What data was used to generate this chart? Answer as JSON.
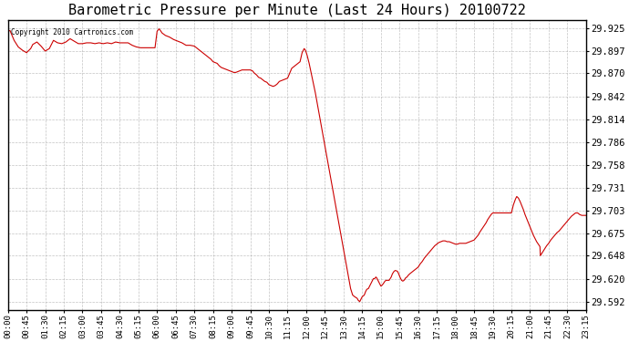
{
  "title": "Barometric Pressure per Minute (Last 24 Hours) 20100722",
  "copyright_text": "Copyright 2010 Cartronics.com",
  "line_color": "#cc0000",
  "background_color": "#ffffff",
  "grid_color": "#aaaaaa",
  "title_fontsize": 11,
  "ylabel_fontsize": 7.5,
  "xlabel_fontsize": 6.5,
  "yticks": [
    29.592,
    29.62,
    29.648,
    29.675,
    29.703,
    29.731,
    29.758,
    29.786,
    29.814,
    29.842,
    29.87,
    29.897,
    29.925
  ],
  "xtick_labels": [
    "00:00",
    "00:45",
    "01:30",
    "02:15",
    "03:00",
    "03:45",
    "04:30",
    "05:15",
    "06:00",
    "06:45",
    "07:30",
    "08:15",
    "09:00",
    "09:45",
    "10:30",
    "11:15",
    "12:00",
    "12:45",
    "13:30",
    "14:15",
    "15:00",
    "15:45",
    "16:30",
    "17:15",
    "18:00",
    "18:45",
    "19:30",
    "20:15",
    "21:00",
    "21:45",
    "22:30",
    "23:15"
  ],
  "ylim": [
    29.582,
    29.935
  ],
  "xlim": [
    0,
    1395
  ],
  "pressure_trace": [
    [
      0,
      29.921
    ],
    [
      5,
      29.922
    ],
    [
      15,
      29.91
    ],
    [
      25,
      29.902
    ],
    [
      35,
      29.898
    ],
    [
      45,
      29.895
    ],
    [
      55,
      29.9
    ],
    [
      60,
      29.905
    ],
    [
      70,
      29.908
    ],
    [
      80,
      29.903
    ],
    [
      90,
      29.897
    ],
    [
      100,
      29.9
    ],
    [
      110,
      29.91
    ],
    [
      120,
      29.907
    ],
    [
      130,
      29.906
    ],
    [
      140,
      29.908
    ],
    [
      150,
      29.912
    ],
    [
      160,
      29.909
    ],
    [
      170,
      29.906
    ],
    [
      180,
      29.906
    ],
    [
      190,
      29.907
    ],
    [
      200,
      29.907
    ],
    [
      210,
      29.906
    ],
    [
      220,
      29.907
    ],
    [
      230,
      29.906
    ],
    [
      240,
      29.907
    ],
    [
      250,
      29.906
    ],
    [
      260,
      29.908
    ],
    [
      270,
      29.907
    ],
    [
      280,
      29.907
    ],
    [
      290,
      29.907
    ],
    [
      300,
      29.904
    ],
    [
      310,
      29.902
    ],
    [
      320,
      29.901
    ],
    [
      330,
      29.901
    ],
    [
      340,
      29.901
    ],
    [
      350,
      29.901
    ],
    [
      355,
      29.901
    ],
    [
      360,
      29.921
    ],
    [
      365,
      29.924
    ],
    [
      368,
      29.922
    ],
    [
      372,
      29.919
    ],
    [
      380,
      29.916
    ],
    [
      390,
      29.914
    ],
    [
      400,
      29.911
    ],
    [
      410,
      29.909
    ],
    [
      420,
      29.907
    ],
    [
      430,
      29.904
    ],
    [
      440,
      29.904
    ],
    [
      450,
      29.903
    ],
    [
      455,
      29.901
    ],
    [
      460,
      29.899
    ],
    [
      465,
      29.897
    ],
    [
      470,
      29.895
    ],
    [
      475,
      29.893
    ],
    [
      480,
      29.891
    ],
    [
      485,
      29.889
    ],
    [
      490,
      29.887
    ],
    [
      495,
      29.884
    ],
    [
      505,
      29.882
    ],
    [
      510,
      29.879
    ],
    [
      515,
      29.877
    ],
    [
      520,
      29.876
    ],
    [
      525,
      29.875
    ],
    [
      530,
      29.874
    ],
    [
      535,
      29.873
    ],
    [
      540,
      29.872
    ],
    [
      545,
      29.871
    ],
    [
      550,
      29.871
    ],
    [
      555,
      29.872
    ],
    [
      560,
      29.873
    ],
    [
      565,
      29.874
    ],
    [
      570,
      29.874
    ],
    [
      575,
      29.874
    ],
    [
      580,
      29.874
    ],
    [
      585,
      29.874
    ],
    [
      590,
      29.873
    ],
    [
      595,
      29.87
    ],
    [
      600,
      29.868
    ],
    [
      605,
      29.865
    ],
    [
      610,
      29.864
    ],
    [
      615,
      29.862
    ],
    [
      620,
      29.86
    ],
    [
      625,
      29.859
    ],
    [
      630,
      29.856
    ],
    [
      635,
      29.855
    ],
    [
      640,
      29.854
    ],
    [
      645,
      29.855
    ],
    [
      650,
      29.857
    ],
    [
      655,
      29.86
    ],
    [
      660,
      29.861
    ],
    [
      665,
      29.862
    ],
    [
      670,
      29.863
    ],
    [
      675,
      29.864
    ],
    [
      680,
      29.87
    ],
    [
      685,
      29.876
    ],
    [
      690,
      29.878
    ],
    [
      695,
      29.88
    ],
    [
      700,
      29.882
    ],
    [
      705,
      29.884
    ],
    [
      710,
      29.895
    ],
    [
      715,
      29.9
    ],
    [
      718,
      29.898
    ],
    [
      722,
      29.892
    ],
    [
      727,
      29.882
    ],
    [
      732,
      29.87
    ],
    [
      737,
      29.858
    ],
    [
      742,
      29.846
    ],
    [
      747,
      29.832
    ],
    [
      752,
      29.818
    ],
    [
      757,
      29.804
    ],
    [
      762,
      29.79
    ],
    [
      767,
      29.776
    ],
    [
      772,
      29.762
    ],
    [
      777,
      29.748
    ],
    [
      782,
      29.734
    ],
    [
      787,
      29.72
    ],
    [
      792,
      29.706
    ],
    [
      797,
      29.692
    ],
    [
      802,
      29.678
    ],
    [
      807,
      29.664
    ],
    [
      812,
      29.65
    ],
    [
      817,
      29.636
    ],
    [
      822,
      29.622
    ],
    [
      827,
      29.608
    ],
    [
      832,
      29.6
    ],
    [
      837,
      29.598
    ],
    [
      840,
      29.597
    ],
    [
      843,
      29.596
    ],
    [
      845,
      29.594
    ],
    [
      847,
      29.593
    ],
    [
      849,
      29.592
    ],
    [
      851,
      29.594
    ],
    [
      855,
      29.598
    ],
    [
      860,
      29.6
    ],
    [
      863,
      29.604
    ],
    [
      866,
      29.607
    ],
    [
      870,
      29.608
    ],
    [
      875,
      29.613
    ],
    [
      878,
      29.616
    ],
    [
      882,
      29.62
    ],
    [
      885,
      29.62
    ],
    [
      888,
      29.622
    ],
    [
      890,
      29.621
    ],
    [
      893,
      29.618
    ],
    [
      896,
      29.615
    ],
    [
      900,
      29.611
    ],
    [
      903,
      29.612
    ],
    [
      906,
      29.614
    ],
    [
      910,
      29.617
    ],
    [
      913,
      29.618
    ],
    [
      916,
      29.618
    ],
    [
      920,
      29.618
    ],
    [
      925,
      29.622
    ],
    [
      928,
      29.626
    ],
    [
      932,
      29.629
    ],
    [
      935,
      29.63
    ],
    [
      940,
      29.629
    ],
    [
      943,
      29.626
    ],
    [
      946,
      29.622
    ],
    [
      950,
      29.618
    ],
    [
      953,
      29.617
    ],
    [
      956,
      29.618
    ],
    [
      960,
      29.621
    ],
    [
      963,
      29.622
    ],
    [
      966,
      29.624
    ],
    [
      970,
      29.626
    ],
    [
      975,
      29.628
    ],
    [
      980,
      29.63
    ],
    [
      985,
      29.632
    ],
    [
      990,
      29.634
    ],
    [
      995,
      29.638
    ],
    [
      1000,
      29.641
    ],
    [
      1005,
      29.645
    ],
    [
      1010,
      29.648
    ],
    [
      1015,
      29.651
    ],
    [
      1020,
      29.654
    ],
    [
      1025,
      29.657
    ],
    [
      1030,
      29.66
    ],
    [
      1035,
      29.662
    ],
    [
      1040,
      29.664
    ],
    [
      1045,
      29.665
    ],
    [
      1050,
      29.666
    ],
    [
      1055,
      29.666
    ],
    [
      1060,
      29.665
    ],
    [
      1065,
      29.665
    ],
    [
      1070,
      29.664
    ],
    [
      1075,
      29.663
    ],
    [
      1080,
      29.662
    ],
    [
      1085,
      29.662
    ],
    [
      1090,
      29.663
    ],
    [
      1095,
      29.663
    ],
    [
      1100,
      29.663
    ],
    [
      1105,
      29.663
    ],
    [
      1110,
      29.664
    ],
    [
      1115,
      29.665
    ],
    [
      1120,
      29.666
    ],
    [
      1125,
      29.667
    ],
    [
      1130,
      29.67
    ],
    [
      1135,
      29.673
    ],
    [
      1138,
      29.676
    ],
    [
      1142,
      29.679
    ],
    [
      1146,
      29.682
    ],
    [
      1150,
      29.685
    ],
    [
      1154,
      29.688
    ],
    [
      1158,
      29.692
    ],
    [
      1162,
      29.695
    ],
    [
      1166,
      29.698
    ],
    [
      1170,
      29.7
    ],
    [
      1175,
      29.7
    ],
    [
      1180,
      29.7
    ],
    [
      1185,
      29.7
    ],
    [
      1190,
      29.7
    ],
    [
      1195,
      29.7
    ],
    [
      1200,
      29.7
    ],
    [
      1205,
      29.7
    ],
    [
      1210,
      29.7
    ],
    [
      1215,
      29.7
    ],
    [
      1220,
      29.71
    ],
    [
      1225,
      29.717
    ],
    [
      1228,
      29.72
    ],
    [
      1232,
      29.718
    ],
    [
      1236,
      29.714
    ],
    [
      1240,
      29.709
    ],
    [
      1244,
      29.704
    ],
    [
      1248,
      29.698
    ],
    [
      1252,
      29.693
    ],
    [
      1256,
      29.688
    ],
    [
      1260,
      29.683
    ],
    [
      1264,
      29.678
    ],
    [
      1268,
      29.673
    ],
    [
      1272,
      29.669
    ],
    [
      1276,
      29.665
    ],
    [
      1280,
      29.662
    ],
    [
      1284,
      29.659
    ],
    [
      1285,
      29.648
    ],
    [
      1290,
      29.652
    ],
    [
      1295,
      29.656
    ],
    [
      1300,
      29.66
    ],
    [
      1305,
      29.663
    ],
    [
      1310,
      29.667
    ],
    [
      1315,
      29.67
    ],
    [
      1320,
      29.673
    ],
    [
      1325,
      29.676
    ],
    [
      1330,
      29.678
    ],
    [
      1335,
      29.681
    ],
    [
      1340,
      29.684
    ],
    [
      1345,
      29.687
    ],
    [
      1350,
      29.69
    ],
    [
      1355,
      29.693
    ],
    [
      1360,
      29.696
    ],
    [
      1365,
      29.698
    ],
    [
      1370,
      29.7
    ],
    [
      1375,
      29.7
    ],
    [
      1380,
      29.698
    ],
    [
      1385,
      29.697
    ],
    [
      1390,
      29.697
    ],
    [
      1395,
      29.697
    ]
  ]
}
